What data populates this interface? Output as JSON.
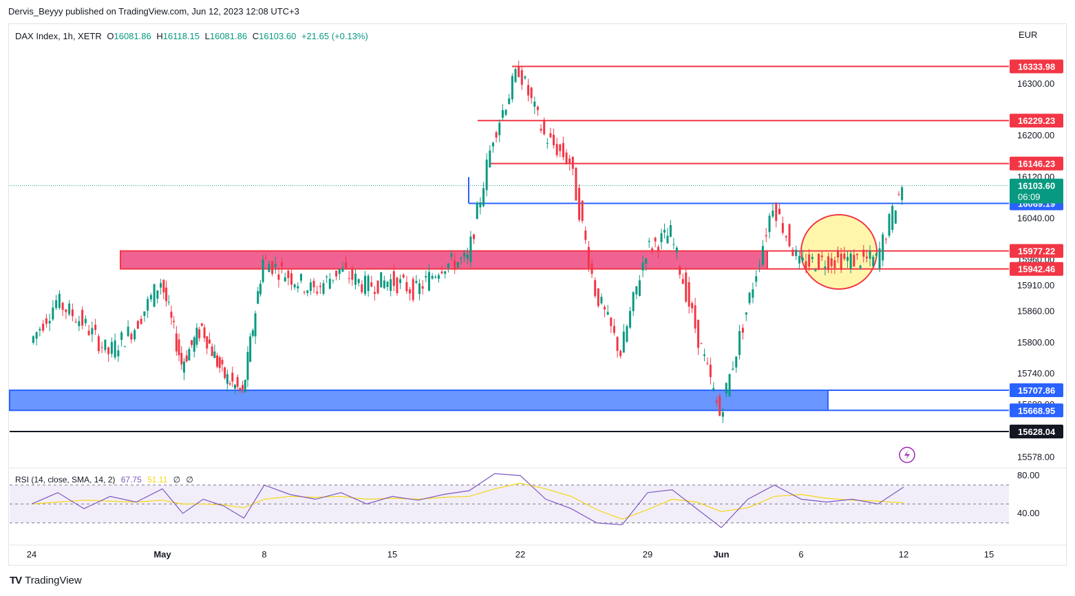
{
  "publisher": "Dervis_Beyyy published on TradingView.com, Jun 12, 2023 12:08 UTC+3",
  "brand": "TradingView",
  "brand_logo": "TV",
  "colors": {
    "up": "#089981",
    "down": "#f23645",
    "resistance": "#f23645",
    "support": "#2962ff",
    "zone_red_fill": "#f06292",
    "zone_blue_fill": "#6a96ff",
    "circle_fill": "#fff59d",
    "rsi_line": "#7e57c2",
    "rsi_sma": "#f5d60f"
  },
  "legend": {
    "symbol": "DAX Index, 1h, XETR",
    "open_label": "O",
    "open": "16081.86",
    "high_label": "H",
    "high": "16118.15",
    "low_label": "L",
    "low": "16081.86",
    "close_label": "C",
    "close": "16103.60",
    "change": "+21.65 (+0.13%)"
  },
  "rsi_legend": {
    "label": "RSI (14, close, SMA, 14, 2)",
    "rsi": "67.75",
    "sma": "51.11",
    "extra1": "∅",
    "extra2": "∅"
  },
  "chart_data": [
    {
      "type": "line",
      "title": "DAX Index, 1h, XETR",
      "currency": "EUR",
      "price_axis_ticks": [
        "16300.00",
        "16200.00",
        "16120.00",
        "16040.00",
        "15960.00",
        "15910.00",
        "15860.00",
        "15800.00",
        "15740.00",
        "15680.00",
        "15578.00"
      ],
      "time_axis_ticks": [
        "24",
        "May",
        "8",
        "15",
        "22",
        "29",
        "Jun",
        "6",
        "12",
        "15"
      ],
      "series": [
        {
          "values": [
            {
              "x": "Apr 24",
              "y": 15800
            },
            {
              "x": "Apr 25",
              "y": 15880
            },
            {
              "x": "Apr 26",
              "y": 15840
            },
            {
              "x": "Apr 27",
              "y": 15780
            },
            {
              "x": "Apr 28",
              "y": 15830
            },
            {
              "x": "May 1",
              "y": 15920
            },
            {
              "x": "May 2",
              "y": 15760
            },
            {
              "x": "May 3",
              "y": 15830
            },
            {
              "x": "May 4",
              "y": 15740
            },
            {
              "x": "May 5",
              "y": 15700
            },
            {
              "x": "May 8",
              "y": 15960
            },
            {
              "x": "May 9",
              "y": 15930
            },
            {
              "x": "May 10",
              "y": 15900
            },
            {
              "x": "May 11",
              "y": 15940
            },
            {
              "x": "May 12",
              "y": 15910
            },
            {
              "x": "May 15",
              "y": 15920
            },
            {
              "x": "May 16",
              "y": 15900
            },
            {
              "x": "May 17",
              "y": 15950
            },
            {
              "x": "May 18",
              "y": 15960
            },
            {
              "x": "May 19",
              "y": 16200
            },
            {
              "x": "May 22",
              "y": 16330
            },
            {
              "x": "May 23",
              "y": 16200
            },
            {
              "x": "May 24",
              "y": 16150
            },
            {
              "x": "May 25",
              "y": 15900
            },
            {
              "x": "May 26",
              "y": 15780
            },
            {
              "x": "May 29",
              "y": 15980
            },
            {
              "x": "May 30",
              "y": 16010
            },
            {
              "x": "May 31",
              "y": 15830
            },
            {
              "x": "Jun 1",
              "y": 15660
            },
            {
              "x": "Jun 2",
              "y": 15860
            },
            {
              "x": "Jun 5",
              "y": 16070
            },
            {
              "x": "Jun 6",
              "y": 15950
            },
            {
              "x": "Jun 7",
              "y": 15960
            },
            {
              "x": "Jun 8",
              "y": 15960
            },
            {
              "x": "Jun 9",
              "y": 15960
            },
            {
              "x": "Jun 12",
              "y": 16103.6
            }
          ]
        }
      ],
      "levels": [
        {
          "label": "16333.98",
          "value": 16333.98,
          "kind": "resistance"
        },
        {
          "label": "16229.23",
          "value": 16229.23,
          "kind": "resistance"
        },
        {
          "label": "16146.23",
          "value": 16146.23,
          "kind": "resistance"
        },
        {
          "label": "16069.19",
          "value": 16069.19,
          "kind": "support"
        },
        {
          "label": "15977.22",
          "value": 15977.22,
          "kind": "resistance"
        },
        {
          "label": "15942.46",
          "value": 15942.46,
          "kind": "resistance"
        },
        {
          "label": "15707.86",
          "value": 15707.86,
          "kind": "support"
        },
        {
          "label": "15668.95",
          "value": 15668.95,
          "kind": "support"
        },
        {
          "label": "15628.04",
          "value": 15628.04,
          "kind": "black"
        }
      ],
      "last_price": {
        "label": "16103.60",
        "countdown": "06:09"
      }
    },
    {
      "type": "line",
      "title": "RSI (14, close, SMA, 14, 2)",
      "ticks": [
        "80.00",
        "40.00"
      ],
      "bands": {
        "upper": 70,
        "middle": 50,
        "lower": 30
      },
      "series": [
        {
          "values": [
            50,
            62,
            45,
            58,
            52,
            66,
            40,
            55,
            48,
            35,
            70,
            60,
            55,
            62,
            50,
            58,
            54,
            60,
            64,
            82,
            80,
            55,
            45,
            30,
            28,
            62,
            65,
            45,
            25,
            55,
            70,
            55,
            52,
            55,
            50,
            67.75
          ]
        },
        {
          "values": [
            50,
            52,
            54,
            53,
            52,
            54,
            50,
            50,
            49,
            46,
            55,
            58,
            57,
            58,
            55,
            56,
            55,
            57,
            58,
            66,
            72,
            66,
            58,
            44,
            34,
            44,
            55,
            52,
            42,
            46,
            58,
            60,
            56,
            54,
            53,
            51.11
          ]
        }
      ]
    }
  ]
}
